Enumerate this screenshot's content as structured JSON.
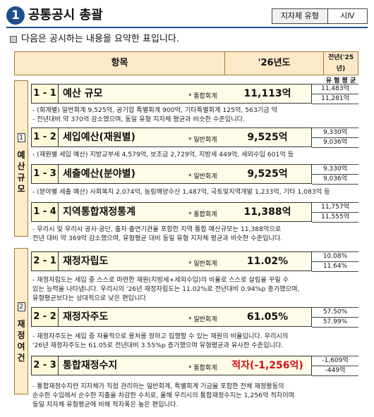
{
  "header": {
    "number": "1",
    "title": "공통공시 총괄",
    "type_label": "지자체 유형",
    "type_value": "시Ⅳ"
  },
  "intro": "다음은 공시하는 내용을 요약한 표입니다.",
  "columns": {
    "item": "항목",
    "current": "'26년도",
    "prev_year": "전년('25년)",
    "prev_sub": "유 형 평 균"
  },
  "sections": [
    {
      "num": "1",
      "chars": [
        "예",
        "산",
        "규",
        "모"
      ]
    },
    {
      "num": "2",
      "chars": [
        "재",
        "정",
        "여",
        "건"
      ]
    }
  ],
  "rows": [
    {
      "idx": "1 - 1",
      "name": "예산 규모",
      "tag": "* 통합회계",
      "value": "11,113억",
      "prev": "11,483억",
      "avg": "11,281억"
    },
    {
      "idx": "1 - 2",
      "name": "세입예산(재원별)",
      "tag": "* 일반회계",
      "value": "9,525억",
      "prev": "9,330억",
      "avg": "9,036억"
    },
    {
      "idx": "1 - 3",
      "name": "세출예산(분야별)",
      "tag": "* 일반회계",
      "value": "9,525억",
      "prev": "9,330억",
      "avg": "9,036억"
    },
    {
      "idx": "1 - 4",
      "name": "지역통합재정통계",
      "tag": "* 통합회계",
      "value": "11,388억",
      "prev": "11,757억",
      "avg": "11,555억"
    },
    {
      "idx": "2 - 1",
      "name": "재정자립도",
      "tag": "* 일반회계",
      "value": "11.02%",
      "prev": "10.08%",
      "avg": "11.64%"
    },
    {
      "idx": "2 - 2",
      "name": "재정자주도",
      "tag": "* 일반회계",
      "value": "61.05%",
      "prev": "57.50%",
      "avg": "57.99%"
    },
    {
      "idx": "2 - 3",
      "name": "통합재정수지",
      "tag": "* 통합회계",
      "value": "적자(-1,256억)",
      "prev": "-1,609억",
      "avg": "-449억"
    }
  ],
  "notes": [
    [
      "- (회계별) 일반회계 9,525억, 공기업 특별회계 900억, 기타특별회계 125억, 563기금 억",
      "- 전년대비 약 370억 감소했으며, 동일 유형 지자체 평균과 비슷한 수준입니다."
    ],
    [
      "- (재원별 세입 예산) 지방교부세 4,579억, 보조금 2,729억, 지방세 449억, 세외수입 601억 등"
    ],
    [
      "- (분야별 세출 예산) 사회복지 2,074억, 농림해양수산 1,487억, 국토및지역개발 1,233억, 기타 1,083억 등"
    ],
    [
      "- 우리시 및 우리시 공사·공단, 출자·출연기관을 포함한 지역 통합 예산규모는 11,388억으로",
      "  전년 대비 약 369억 감소했으며, 유형평균 대비 동일 유형 지자체 평균과 비슷한 수준입니다."
    ],
    [
      "- 재정자립도는 세입 중 스스로 마련한 재원(지방세+세외수입)의 비율로 스스로 살림을 꾸릴 수",
      "  있는 능력을 나타냅니다. 우리시의 '26년 재정자립도는 11.02%로 전년대비 0.94%p 증가했으며,",
      "  유형평균보다는 상대적으로 낮은 편입니다"
    ],
    [
      "- 재정자주도는 세입 중 자율적으로 용처를 정하고 집행할 수 있는 재원의 비율입니다. 우리시의",
      "  '26년 재정자주도는 61.05로 전년대비 3.55%p 증가했으며 유형평균과 유사한 수준입니다."
    ],
    [
      "- 통합재정수지란 지자체가 직접 관리하는 일반회계, 특별회계 기금을 포함한 전체 재정활동의",
      "  순수한 수입에서 순수한 지출을 차감한 수치로, 올해 우리시의 통합재정수지는 1,256억 적자이며",
      "  동일 지자체 유형평균에 비해 적자폭은 높은 편입니다."
    ]
  ]
}
